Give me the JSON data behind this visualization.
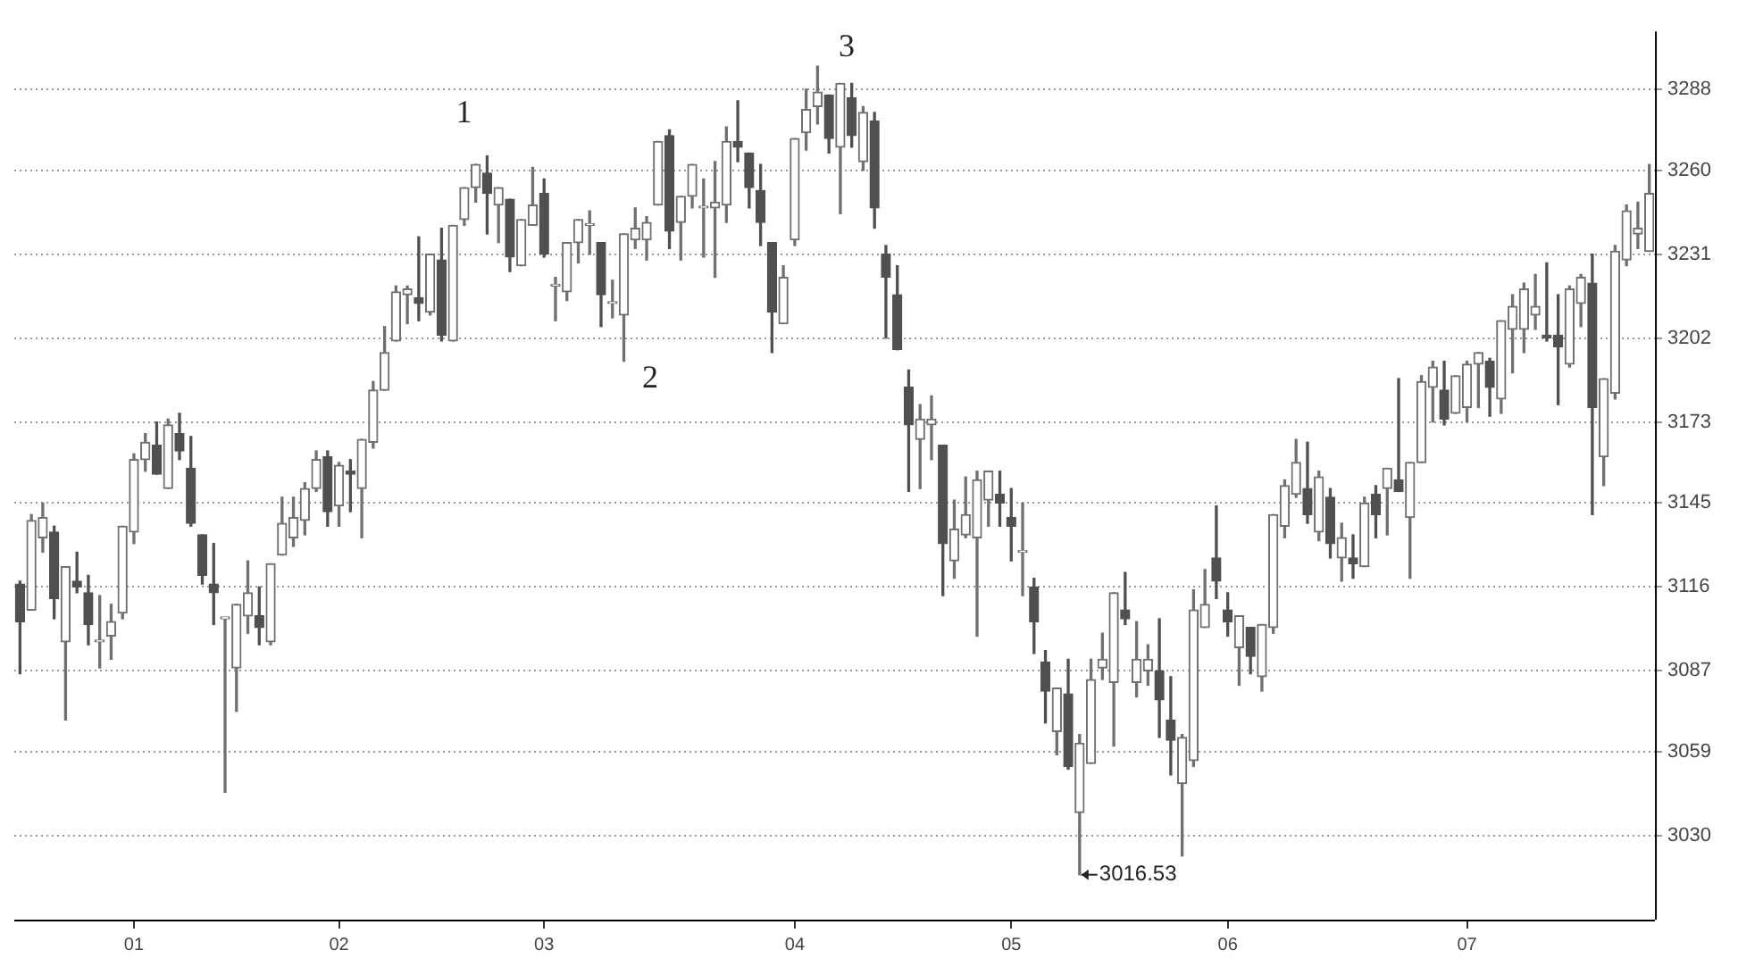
{
  "chart_data": {
    "type": "candlestick",
    "categories": [
      null,
      null,
      null,
      null,
      null,
      null,
      null,
      null,
      null,
      null,
      "01",
      null,
      null,
      null,
      null,
      null,
      null,
      null,
      null,
      null,
      null,
      null,
      null,
      null,
      null,
      null,
      null,
      null,
      "02",
      null,
      null,
      null,
      null,
      null,
      null,
      null,
      null,
      null,
      null,
      null,
      null,
      null,
      null,
      null,
      null,
      null,
      "03",
      null,
      null,
      null,
      null,
      null,
      null,
      null,
      null,
      null,
      null,
      null,
      null,
      null,
      null,
      null,
      null,
      null,
      null,
      null,
      null,
      null,
      "04",
      null,
      null,
      null,
      null,
      null,
      null,
      null,
      null,
      null,
      null,
      null,
      null,
      null,
      null,
      null,
      null,
      null,
      null,
      "05",
      null,
      null,
      null,
      null,
      null,
      null,
      null,
      null,
      null,
      null,
      null,
      null,
      null,
      null,
      null,
      null,
      null,
      null,
      "06",
      null,
      null,
      null,
      null,
      null,
      null,
      null,
      null,
      null,
      null,
      null,
      null,
      null,
      null,
      null,
      null,
      null,
      null,
      null,
      null,
      "07",
      null,
      null,
      null,
      null,
      null,
      null,
      null,
      null,
      null,
      null,
      null,
      null,
      null,
      null,
      null,
      null
    ],
    "ohlc": [
      [
        3117,
        3118,
        3086,
        3104
      ],
      [
        3108,
        3141,
        3108,
        3139
      ],
      [
        3133,
        3145,
        3128,
        3140
      ],
      [
        3135,
        3137,
        3105,
        3112
      ],
      [
        3097,
        3123,
        3070,
        3123
      ],
      [
        3118,
        3128,
        3114,
        3116
      ],
      [
        3114,
        3120,
        3096,
        3103
      ],
      [
        3097,
        3113,
        3088,
        3097
      ],
      [
        3099,
        3110,
        3091,
        3104
      ],
      [
        3107,
        3137,
        3105,
        3137
      ],
      [
        3135,
        3162,
        3131,
        3160
      ],
      [
        3160,
        3169,
        3156,
        3166
      ],
      [
        3165,
        3173,
        3155,
        3155
      ],
      [
        3150,
        3174,
        3150,
        3172
      ],
      [
        3169,
        3176,
        3160,
        3163
      ],
      [
        3157,
        3168,
        3137,
        3138
      ],
      [
        3134,
        3134,
        3117,
        3120
      ],
      [
        3117,
        3131,
        3103,
        3114
      ],
      [
        3105,
        3105,
        3045,
        3105
      ],
      [
        3088,
        3110,
        3073,
        3110
      ],
      [
        3106,
        3125,
        3100,
        3114
      ],
      [
        3106,
        3116,
        3096,
        3102
      ],
      [
        3097,
        3124,
        3096,
        3124
      ],
      [
        3127,
        3147,
        3127,
        3138
      ],
      [
        3133,
        3147,
        3130,
        3140
      ],
      [
        3139,
        3152,
        3134,
        3150
      ],
      [
        3150,
        3163,
        3149,
        3160
      ],
      [
        3161,
        3163,
        3137,
        3142
      ],
      [
        3144,
        3159,
        3137,
        3158
      ],
      [
        3156,
        3160,
        3142,
        3155
      ],
      [
        3150,
        3167,
        3133,
        3167
      ],
      [
        3166,
        3187,
        3164,
        3184
      ],
      [
        3184,
        3206,
        3184,
        3197
      ],
      [
        3201,
        3220,
        3201,
        3218
      ],
      [
        3217,
        3220,
        3207,
        3219
      ],
      [
        3216,
        3237,
        3208,
        3214
      ],
      [
        3211,
        3231,
        3210,
        3231
      ],
      [
        3229,
        3240,
        3201,
        3203
      ],
      [
        3201,
        3241,
        3201,
        3241
      ],
      [
        3243,
        3254,
        3241,
        3254
      ],
      [
        3254,
        3262,
        3249,
        3262
      ],
      [
        3259,
        3265,
        3238,
        3252
      ],
      [
        3248,
        3254,
        3235,
        3254
      ],
      [
        3250,
        3250,
        3225,
        3230
      ],
      [
        3227,
        3243,
        3227,
        3243
      ],
      [
        3241,
        3261,
        3241,
        3248
      ],
      [
        3252,
        3257,
        3230,
        3231
      ],
      [
        3220,
        3223,
        3208,
        3220
      ],
      [
        3218,
        3235,
        3215,
        3235
      ],
      [
        3235,
        3243,
        3228,
        3243
      ],
      [
        3241,
        3246,
        3231,
        3241
      ],
      [
        3235,
        3235,
        3206,
        3217
      ],
      [
        3214,
        3222,
        3209,
        3214
      ],
      [
        3210,
        3238,
        3194,
        3238
      ],
      [
        3236,
        3247,
        3233,
        3240
      ],
      [
        3236,
        3244,
        3229,
        3242
      ],
      [
        3248,
        3270,
        3248,
        3270
      ],
      [
        3272,
        3274,
        3233,
        3239
      ],
      [
        3242,
        3251,
        3229,
        3251
      ],
      [
        3251,
        3262,
        3247,
        3262
      ],
      [
        3247,
        3257,
        3230,
        3247
      ],
      [
        3247,
        3263,
        3223,
        3249
      ],
      [
        3248,
        3275,
        3242,
        3270
      ],
      [
        3270,
        3284,
        3263,
        3268
      ],
      [
        3266,
        3266,
        3247,
        3254
      ],
      [
        3253,
        3262,
        3234,
        3242
      ],
      [
        3235,
        3235,
        3197,
        3211
      ],
      [
        3207,
        3227,
        3207,
        3223
      ],
      [
        3236,
        3271,
        3234,
        3271
      ],
      [
        3273,
        3288,
        3267,
        3281
      ],
      [
        3282,
        3296,
        3276,
        3287
      ],
      [
        3286,
        3286,
        3266,
        3271
      ],
      [
        3268,
        3290,
        3245,
        3290
      ],
      [
        3285,
        3290,
        3268,
        3272
      ],
      [
        3263,
        3282,
        3260,
        3280
      ],
      [
        3277,
        3280,
        3240,
        3247
      ],
      [
        3231,
        3234,
        3202,
        3223
      ],
      [
        3217,
        3227,
        3198,
        3198
      ],
      [
        3185,
        3191,
        3149,
        3172
      ],
      [
        3167,
        3179,
        3150,
        3174
      ],
      [
        3172,
        3182,
        3160,
        3174
      ],
      [
        3165,
        3165,
        3113,
        3131
      ],
      [
        3125,
        3146,
        3119,
        3136
      ],
      [
        3134,
        3154,
        3133,
        3141
      ],
      [
        3133,
        3156,
        3099,
        3153
      ],
      [
        3146,
        3156,
        3137,
        3156
      ],
      [
        3148,
        3156,
        3137,
        3145
      ],
      [
        3140,
        3150,
        3125,
        3137
      ],
      [
        3128,
        3145,
        3113,
        3128
      ],
      [
        3116,
        3119,
        3093,
        3104
      ],
      [
        3090,
        3094,
        3069,
        3080
      ],
      [
        3066,
        3081,
        3058,
        3081
      ],
      [
        3079,
        3091,
        3053,
        3054
      ],
      [
        3038,
        3065,
        3016.53,
        3062
      ],
      [
        3055,
        3091,
        3055,
        3084
      ],
      [
        3088,
        3100,
        3084,
        3091
      ],
      [
        3083,
        3114,
        3061,
        3114
      ],
      [
        3108,
        3121,
        3103,
        3105
      ],
      [
        3083,
        3104,
        3078,
        3091
      ],
      [
        3087,
        3096,
        3082,
        3091
      ],
      [
        3087,
        3105,
        3064,
        3077
      ],
      [
        3070,
        3085,
        3051,
        3063
      ],
      [
        3048,
        3065,
        3023,
        3064
      ],
      [
        3056,
        3115,
        3054,
        3108
      ],
      [
        3102,
        3122,
        3102,
        3110
      ],
      [
        3126,
        3144,
        3112,
        3118
      ],
      [
        3108,
        3114,
        3099,
        3104
      ],
      [
        3095,
        3106,
        3082,
        3106
      ],
      [
        3102,
        3102,
        3086,
        3092
      ],
      [
        3085,
        3103,
        3080,
        3103
      ],
      [
        3102,
        3141,
        3100,
        3141
      ],
      [
        3137,
        3153,
        3133,
        3151
      ],
      [
        3148,
        3167,
        3147,
        3159
      ],
      [
        3150,
        3166,
        3138,
        3141
      ],
      [
        3135,
        3156,
        3132,
        3154
      ],
      [
        3147,
        3150,
        3126,
        3131
      ],
      [
        3126,
        3138,
        3118,
        3133
      ],
      [
        3126,
        3134,
        3119,
        3124
      ],
      [
        3123,
        3147,
        3123,
        3145
      ],
      [
        3148,
        3151,
        3133,
        3141
      ],
      [
        3150,
        3157,
        3134,
        3157
      ],
      [
        3153,
        3188,
        3149,
        3149
      ],
      [
        3140,
        3159,
        3119,
        3159
      ],
      [
        3159,
        3189,
        3159,
        3187
      ],
      [
        3185,
        3194,
        3173,
        3192
      ],
      [
        3184,
        3194,
        3172,
        3174
      ],
      [
        3176,
        3189,
        3176,
        3189
      ],
      [
        3178,
        3194,
        3173,
        3193
      ],
      [
        3193,
        3197,
        3178,
        3197
      ],
      [
        3194,
        3195,
        3175,
        3185
      ],
      [
        3181,
        3208,
        3176,
        3208
      ],
      [
        3205,
        3217,
        3190,
        3213
      ],
      [
        3205,
        3221,
        3197,
        3219
      ],
      [
        3210,
        3224,
        3205,
        3213
      ],
      [
        3203,
        3228,
        3201,
        3202
      ],
      [
        3203,
        3217,
        3179,
        3199
      ],
      [
        3193,
        3220,
        3192,
        3219
      ],
      [
        3214,
        3224,
        3206,
        3223
      ],
      [
        3221,
        3231,
        3141,
        3178
      ],
      [
        3161,
        3188,
        3151,
        3188
      ],
      [
        3183,
        3234,
        3181,
        3232
      ],
      [
        3229,
        3248,
        3227,
        3246
      ],
      [
        3238,
        3249,
        3233,
        3240
      ],
      [
        3232,
        3262,
        3232,
        3252
      ]
    ],
    "ylim": [
      3001,
      3308
    ],
    "yticks": [
      3030,
      3059,
      3087,
      3116,
      3145,
      3173,
      3202,
      3231,
      3260,
      3288
    ],
    "grid": "y",
    "annotations": [
      "1",
      "2",
      "3",
      "3016.53"
    ]
  }
}
